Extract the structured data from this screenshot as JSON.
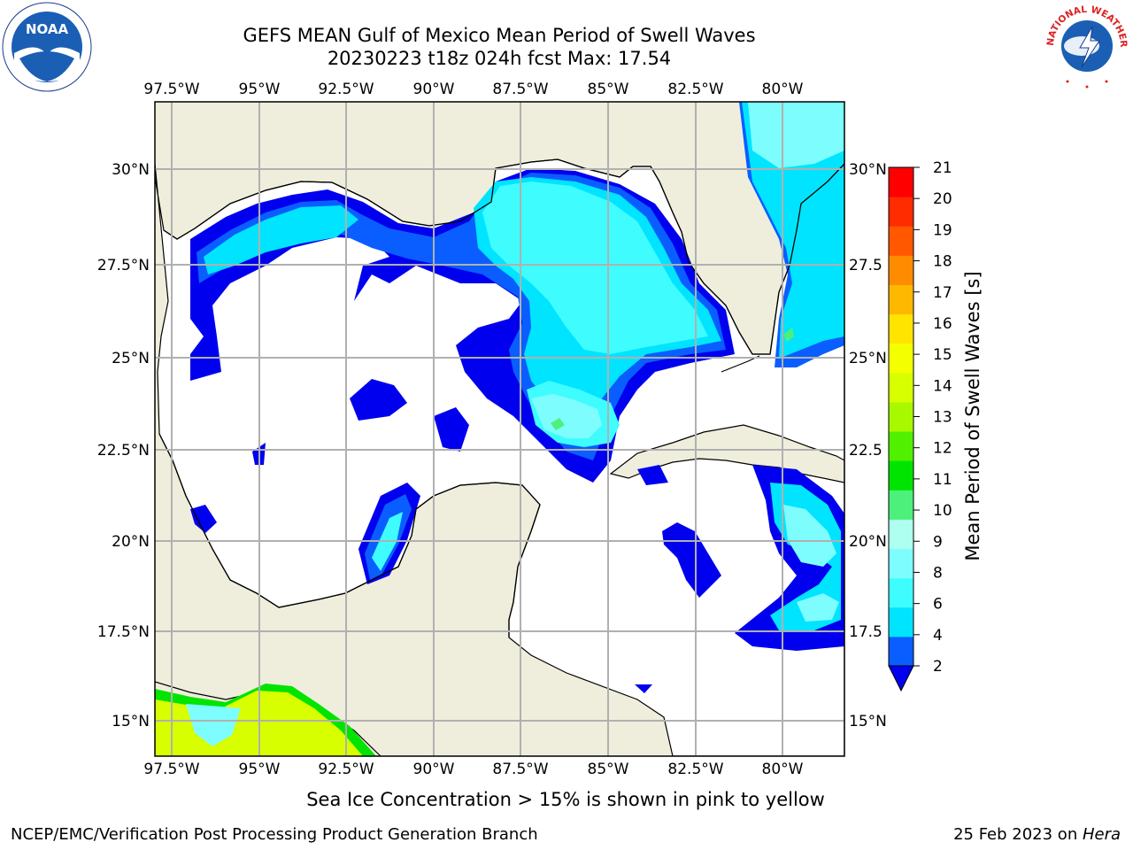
{
  "title_line1": "GEFS MEAN Gulf of Mexico Mean Period of Swell Waves",
  "title_line2": "20230223 t18z 024h fcst   Max: 17.54",
  "subtitle": "Sea Ice Concentration > 15% is shown in pink to yellow",
  "credit": "NCEP/EMC/Verification Post Processing Product Generation Branch",
  "date_prefix": "25 Feb 2023 on ",
  "date_host": "Hera",
  "logos": {
    "left": "NOAA",
    "right": "NATIONAL WEATHER SERVICE"
  },
  "map": {
    "lon_labels": [
      "97.5°W",
      "95°W",
      "92.5°W",
      "90°W",
      "87.5°W",
      "85°W",
      "82.5°W",
      "80°W"
    ],
    "lat_labels_left": [
      "30°N",
      "27.5°N",
      "25°N",
      "22.5°N",
      "20°N",
      "17.5°N",
      "15°N"
    ],
    "lat_labels_right": [
      "30°N",
      "27.5",
      "25°N",
      "22.5",
      "20°N",
      "17.5",
      "15°N"
    ],
    "land_color": "#efeedc",
    "grid_color": "#b0b0b0"
  },
  "colorbar": {
    "label": "Mean Period of Swell Waves [s]",
    "ticks": [
      "2",
      "4",
      "6",
      "8",
      "9",
      "10",
      "11",
      "12",
      "13",
      "14",
      "15",
      "16",
      "17",
      "18",
      "19",
      "20",
      "21"
    ],
    "colors": [
      "#0a5eff",
      "#00e4ff",
      "#3ffcff",
      "#7efdff",
      "#aefff0",
      "#4df07a",
      "#00e400",
      "#50f000",
      "#a8f800",
      "#d8ff00",
      "#f4ff00",
      "#ffe400",
      "#ffb800",
      "#ff8c00",
      "#ff5800",
      "#ff2c00",
      "#ff0000"
    ],
    "under_color": "#0000ee"
  }
}
